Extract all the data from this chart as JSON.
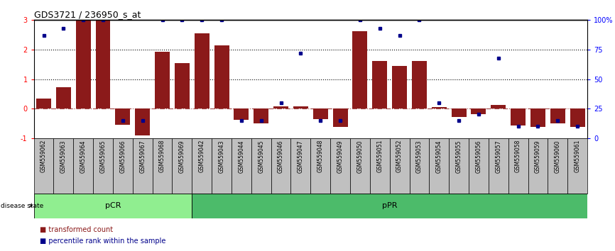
{
  "title": "GDS3721 / 236950_s_at",
  "samples": [
    "GSM559062",
    "GSM559063",
    "GSM559064",
    "GSM559065",
    "GSM559066",
    "GSM559067",
    "GSM559068",
    "GSM559069",
    "GSM559042",
    "GSM559043",
    "GSM559044",
    "GSM559045",
    "GSM559046",
    "GSM559047",
    "GSM559048",
    "GSM559049",
    "GSM559050",
    "GSM559051",
    "GSM559052",
    "GSM559053",
    "GSM559054",
    "GSM559055",
    "GSM559056",
    "GSM559057",
    "GSM559058",
    "GSM559059",
    "GSM559060",
    "GSM559061"
  ],
  "transformed_count": [
    0.35,
    0.72,
    3.0,
    3.0,
    -0.55,
    -0.92,
    1.92,
    1.55,
    2.55,
    2.15,
    -0.38,
    -0.5,
    0.08,
    0.07,
    -0.35,
    -0.62,
    2.62,
    1.62,
    1.45,
    1.62,
    0.05,
    -0.28,
    -0.2,
    0.12,
    -0.58,
    -0.62,
    -0.5,
    -0.62
  ],
  "percentile_rank": [
    87,
    93,
    100,
    100,
    15,
    15,
    100,
    100,
    100,
    100,
    15,
    15,
    30,
    72,
    15,
    15,
    100,
    93,
    87,
    100,
    30,
    15,
    20,
    68,
    10,
    10,
    15,
    10
  ],
  "pCR_count": 8,
  "pPR_count": 20,
  "ylim": [
    -1.0,
    3.0
  ],
  "right_ylim": [
    0,
    100
  ],
  "bar_color": "#8B1A1A",
  "dot_color": "#00008B",
  "pCR_color": "#90EE90",
  "pPR_color": "#4CBB6A",
  "label_bg_color": "#C0C0C0",
  "legend_red_label": "transformed count",
  "legend_blue_label": "percentile rank within the sample",
  "disease_state_label": "disease state",
  "pCR_label": "pCR",
  "pPR_label": "pPR",
  "right_yticks": [
    0,
    25,
    50,
    75,
    100
  ],
  "right_yticklabels": [
    "0",
    "25",
    "50",
    "75",
    "100%"
  ]
}
